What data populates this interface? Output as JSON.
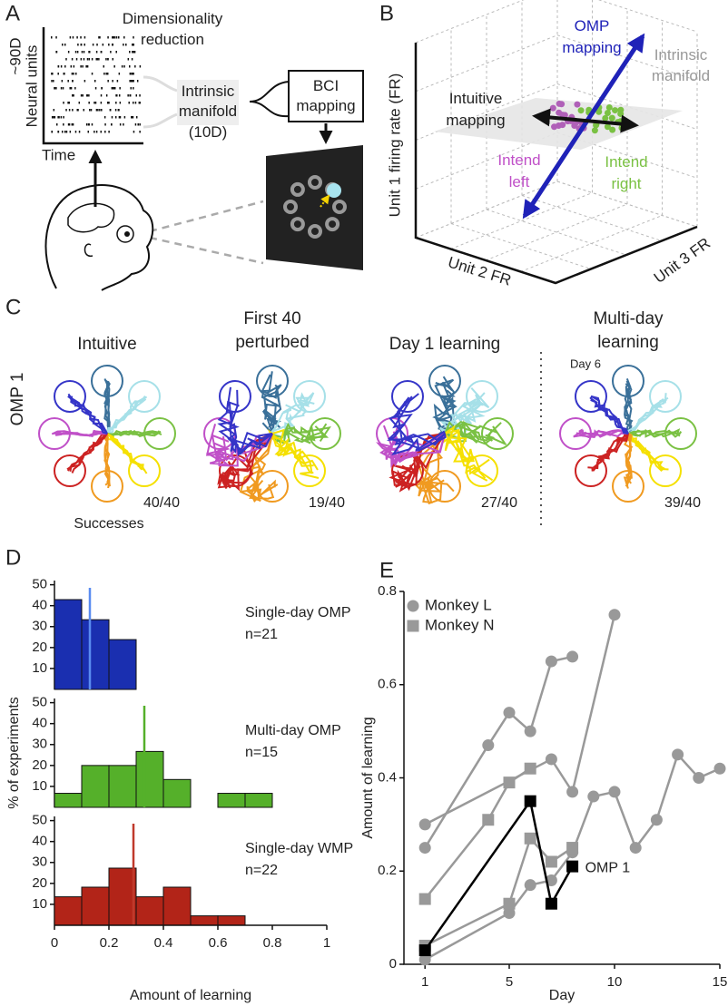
{
  "panel_a": {
    "label": "A",
    "dimensionality_reduction": [
      "Dimensionality",
      "reduction"
    ],
    "neural_dim": "~90D",
    "neural_units": "Neural units",
    "time": "Time",
    "intrinsic_manifold": [
      "Intrinsic",
      "manifold",
      "(10D)"
    ],
    "bci_mapping": [
      "BCI",
      "mapping"
    ]
  },
  "panel_b": {
    "label": "B",
    "omp_mapping": [
      "OMP",
      "mapping"
    ],
    "intrinsic_manifold": [
      "Intrinsic",
      "manifold"
    ],
    "intuitive_mapping": [
      "Intuitive",
      "mapping"
    ],
    "intend_left": [
      "Intend",
      "left"
    ],
    "intend_right": [
      "Intend",
      "right"
    ],
    "y_label": "Unit 1 firing rate (FR)",
    "x_label": "Unit 2 FR",
    "z_label": "Unit 3 FR"
  },
  "panel_c": {
    "label": "C",
    "row_label": "OMP 1",
    "columns": [
      {
        "title": [
          "Intuitive"
        ],
        "successes": "40/40"
      },
      {
        "title": [
          "First 40",
          "perturbed"
        ],
        "successes": "19/40"
      },
      {
        "title": [
          "Day 1 learning"
        ],
        "successes": "27/40"
      },
      {
        "title": [
          "Multi-day",
          "learning"
        ],
        "successes": "39/40"
      }
    ],
    "successes_label": "Successes",
    "day_label": "Day 6"
  },
  "panel_d": {
    "label": "D"
  },
  "panel_e": {
    "label": "E"
  },
  "chart_data": [
    {
      "type": "histogram",
      "title": "Single-day OMP",
      "subtitle": "n=21",
      "bins": [
        0,
        0.1,
        0.2,
        0.3,
        0.4,
        0.5,
        0.6,
        0.7,
        0.8,
        0.9,
        1
      ],
      "values": [
        42.9,
        33.3,
        23.8,
        0,
        0,
        0,
        0,
        0,
        0,
        0
      ],
      "color": "#1a2fb0",
      "mean": 0.13,
      "mean_color": "#5a8cf0",
      "ylim": [
        0,
        52
      ],
      "yticks": [
        10,
        20,
        30,
        40,
        50
      ]
    },
    {
      "type": "histogram",
      "title": "Multi-day OMP",
      "subtitle": "n=15",
      "ylabel": "% of experiments",
      "bins": [
        0,
        0.1,
        0.2,
        0.3,
        0.4,
        0.5,
        0.6,
        0.7,
        0.8,
        0.9,
        1
      ],
      "values": [
        6.7,
        20,
        20,
        26.7,
        13.3,
        0,
        6.7,
        6.7,
        0,
        0
      ],
      "color": "#55b02a",
      "mean": 0.33,
      "mean_color": "#55b02a",
      "ylim": [
        0,
        52
      ],
      "yticks": [
        10,
        20,
        30,
        40,
        50
      ]
    },
    {
      "type": "histogram",
      "title": "Single-day WMP",
      "subtitle": "n=22",
      "xlabel": "Amount of learning",
      "bins": [
        0,
        0.1,
        0.2,
        0.3,
        0.4,
        0.5,
        0.6,
        0.7,
        0.8,
        0.9,
        1
      ],
      "values": [
        13.6,
        18.2,
        27.3,
        13.6,
        18.2,
        4.5,
        4.5,
        0,
        0,
        0
      ],
      "color": "#b22418",
      "mean": 0.29,
      "mean_color": "#c0392b",
      "xlim": [
        0,
        1
      ],
      "xticks": [
        0,
        0.2,
        0.4,
        0.6,
        0.8,
        1
      ],
      "ylim": [
        0,
        52
      ],
      "yticks": [
        10,
        20,
        30,
        40,
        50
      ]
    },
    {
      "type": "line",
      "xlabel": "Day",
      "ylabel": "Amount of learning",
      "xlim": [
        0,
        15
      ],
      "xticks": [
        1,
        5,
        10,
        15
      ],
      "ylim": [
        0,
        0.8
      ],
      "yticks": [
        0,
        0.2,
        0.4,
        0.6,
        0.8
      ],
      "legend": [
        {
          "name": "Monkey L",
          "marker": "circle",
          "color": "#999999"
        },
        {
          "name": "Monkey N",
          "marker": "square",
          "color": "#999999"
        }
      ],
      "series": [
        {
          "marker": "circle",
          "color": "#999999",
          "x": [
            1,
            4,
            5,
            6,
            7,
            8
          ],
          "values": [
            0.25,
            0.47,
            0.54,
            0.5,
            0.65,
            0.66
          ]
        },
        {
          "marker": "circle",
          "color": "#999999",
          "x": [
            1,
            7,
            8,
            10
          ],
          "values": [
            0.3,
            0.44,
            0.37,
            0.75
          ]
        },
        {
          "marker": "circle",
          "color": "#999999",
          "x": [
            1,
            5,
            6,
            7,
            8,
            9,
            10,
            11,
            12,
            13,
            14,
            15
          ],
          "values": [
            0.01,
            0.11,
            0.17,
            0.18,
            0.24,
            0.36,
            0.37,
            0.25,
            0.31,
            0.45,
            0.4,
            0.42
          ]
        },
        {
          "marker": "square",
          "color": "#999999",
          "x": [
            1,
            4,
            5,
            6
          ],
          "values": [
            0.14,
            0.31,
            0.39,
            0.42
          ]
        },
        {
          "marker": "square",
          "color": "#999999",
          "x": [
            1,
            5,
            6,
            7,
            8
          ],
          "values": [
            0.04,
            0.13,
            0.27,
            0.22,
            0.25
          ]
        },
        {
          "name": "OMP 1",
          "marker": "square",
          "color": "#000000",
          "x": [
            1,
            6,
            7,
            8
          ],
          "values": [
            0.03,
            0.35,
            0.13,
            0.21
          ]
        }
      ]
    }
  ]
}
